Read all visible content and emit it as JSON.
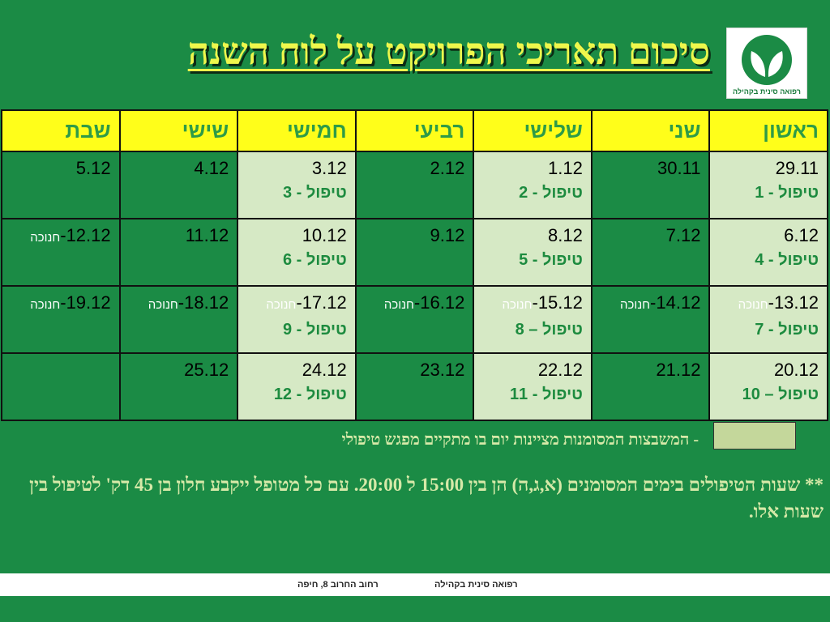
{
  "title": "סיכום תאריכי הפרויקט על לוח השנה",
  "logo": {
    "icon": "leaf-logo-icon",
    "text": "רפואה סינית בקהילה",
    "color": "#1b8b45"
  },
  "colors": {
    "background": "#1b8b45",
    "header": "#fffe1a",
    "shaded": "#d6e9c5",
    "title": "#eef74c"
  },
  "days": [
    "ראשון",
    "שני",
    "שלישי",
    "רביעי",
    "חמישי",
    "שישי",
    "שבת"
  ],
  "weeks": [
    [
      {
        "date": "29.11",
        "holiday": "",
        "treatment": "טיפול - 1",
        "shaded": true
      },
      {
        "date": "30.11",
        "holiday": "",
        "treatment": "",
        "shaded": false
      },
      {
        "date": "1.12",
        "holiday": "",
        "treatment": "טיפול - 2",
        "shaded": true
      },
      {
        "date": "2.12",
        "holiday": "",
        "treatment": "",
        "shaded": false
      },
      {
        "date": "3.12",
        "holiday": "",
        "treatment": "טיפול - 3",
        "shaded": true
      },
      {
        "date": "4.12",
        "holiday": "",
        "treatment": "",
        "shaded": false
      },
      {
        "date": "5.12",
        "holiday": "",
        "treatment": "",
        "shaded": false
      }
    ],
    [
      {
        "date": "6.12",
        "holiday": "",
        "treatment": "טיפול - 4",
        "shaded": true
      },
      {
        "date": "7.12",
        "holiday": "",
        "treatment": "",
        "shaded": false
      },
      {
        "date": "8.12",
        "holiday": "",
        "treatment": "טיפול - 5",
        "shaded": true
      },
      {
        "date": "9.12",
        "holiday": "",
        "treatment": "",
        "shaded": false
      },
      {
        "date": "10.12",
        "holiday": "",
        "treatment": "טיפול - 6",
        "shaded": true
      },
      {
        "date": "11.12",
        "holiday": "",
        "treatment": "",
        "shaded": false
      },
      {
        "date": "12.12",
        "holiday": "חנוכה",
        "treatment": "",
        "shaded": false
      }
    ],
    [
      {
        "date": "13.12",
        "holiday": "חנוכה",
        "treatment": "טיפול - 7",
        "shaded": true
      },
      {
        "date": "14.12",
        "holiday": "חנוכה",
        "treatment": "",
        "shaded": false
      },
      {
        "date": "15.12",
        "holiday": "חנוכה",
        "treatment": "טיפול – 8",
        "shaded": true
      },
      {
        "date": "16.12",
        "holiday": "חנוכה",
        "treatment": "",
        "shaded": false
      },
      {
        "date": "17.12",
        "holiday": "חנוכה",
        "treatment": "טיפול - 9",
        "shaded": true
      },
      {
        "date": "18.12",
        "holiday": "חנוכה",
        "treatment": "",
        "shaded": false
      },
      {
        "date": "19.12",
        "holiday": "חנוכה",
        "treatment": "",
        "shaded": false
      }
    ],
    [
      {
        "date": "20.12",
        "holiday": "",
        "treatment": "טיפול – 10",
        "shaded": true
      },
      {
        "date": "21.12",
        "holiday": "",
        "treatment": "",
        "shaded": false
      },
      {
        "date": "22.12",
        "holiday": "",
        "treatment": "טיפול - 11",
        "shaded": true
      },
      {
        "date": "23.12",
        "holiday": "",
        "treatment": "",
        "shaded": false
      },
      {
        "date": "24.12",
        "holiday": "",
        "treatment": "טיפול - 12",
        "shaded": true
      },
      {
        "date": "25.12",
        "holiday": "",
        "treatment": "",
        "shaded": false
      },
      {
        "date": "",
        "holiday": "",
        "treatment": "",
        "shaded": false
      }
    ]
  ],
  "legend": {
    "text": "- המשבצות המסומנות מציינות יום בו מתקיים מפגש טיפולי",
    "color": "#c4d79b"
  },
  "note": "** שעות הטיפולים בימים המסומנים (א,ג,ה) הן בין 15:00 ל 20:00. עם כל מטופל ייקבע חלון בן 45 דק' לטיפול בין שעות אלו.",
  "footer": {
    "org": "רפואה סינית בקהילה",
    "address": "רחוב החרוב 8, חיפה"
  }
}
